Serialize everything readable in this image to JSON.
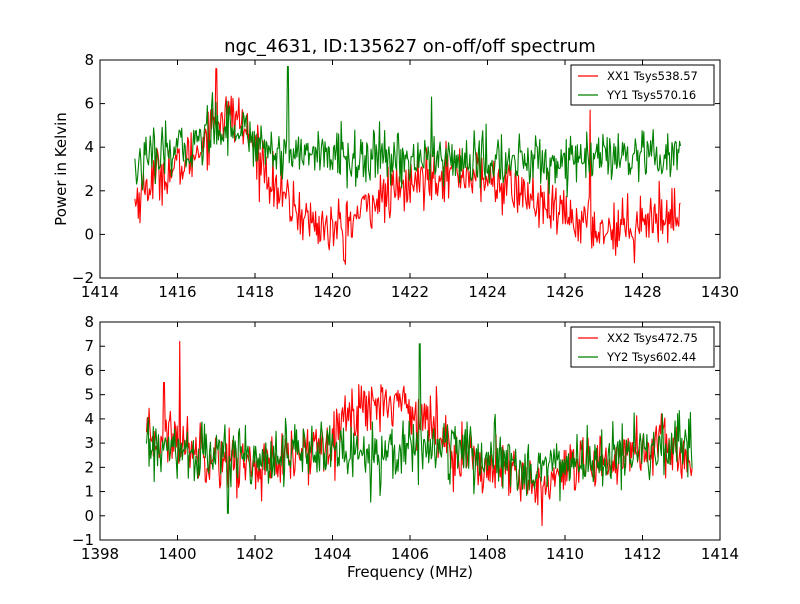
{
  "chart_data": [
    {
      "type": "line",
      "title": "ngc_4631, ID:135627 on-off/off spectrum",
      "xlabel": "",
      "ylabel": "Power in Kelvin",
      "xlim": [
        1414,
        1430
      ],
      "ylim": [
        -2,
        8
      ],
      "xticks": [
        1414,
        1416,
        1418,
        1420,
        1422,
        1424,
        1426,
        1428,
        1430
      ],
      "yticks": [
        -2,
        0,
        2,
        4,
        6,
        8
      ],
      "grid": false,
      "legend_position": "top-right",
      "series": [
        {
          "name": "XX1 Tsys538.57",
          "color": "#ff0000",
          "x_range": [
            1414.9,
            1429.0
          ],
          "points": [
            [
              1414.9,
              1.5
            ],
            [
              1415.2,
              2.2
            ],
            [
              1415.5,
              2.8
            ],
            [
              1416.0,
              3.0
            ],
            [
              1416.5,
              3.8
            ],
            [
              1417.0,
              5.4
            ],
            [
              1417.5,
              5.5
            ],
            [
              1418.0,
              4.0
            ],
            [
              1418.5,
              2.2
            ],
            [
              1419.0,
              1.2
            ],
            [
              1419.5,
              0.5
            ],
            [
              1420.0,
              0.2
            ],
            [
              1420.5,
              0.6
            ],
            [
              1421.0,
              1.5
            ],
            [
              1421.5,
              1.8
            ],
            [
              1422.0,
              2.2
            ],
            [
              1422.5,
              2.8
            ],
            [
              1423.0,
              2.9
            ],
            [
              1423.5,
              2.8
            ],
            [
              1424.0,
              2.5
            ],
            [
              1424.5,
              2.2
            ],
            [
              1425.0,
              1.8
            ],
            [
              1425.5,
              1.1
            ],
            [
              1426.0,
              0.9
            ],
            [
              1426.5,
              0.5
            ],
            [
              1427.0,
              0.2
            ],
            [
              1427.5,
              0.4
            ],
            [
              1428.0,
              0.8
            ],
            [
              1428.5,
              0.8
            ],
            [
              1429.0,
              1.0
            ]
          ],
          "spikes": [
            [
              1417.0,
              7.6
            ],
            [
              1426.65,
              5.7
            ],
            [
              1420.3,
              -1.2
            ],
            [
              1427.8,
              -1.3
            ]
          ]
        },
        {
          "name": "YY1 Tsys570.16",
          "color": "#008000",
          "x_range": [
            1414.9,
            1429.0
          ],
          "points": [
            [
              1414.9,
              3.0
            ],
            [
              1415.5,
              3.6
            ],
            [
              1416.0,
              3.8
            ],
            [
              1416.5,
              4.2
            ],
            [
              1417.0,
              5.0
            ],
            [
              1417.5,
              5.0
            ],
            [
              1418.0,
              4.3
            ],
            [
              1418.5,
              3.8
            ],
            [
              1419.0,
              3.8
            ],
            [
              1420.0,
              3.6
            ],
            [
              1421.0,
              3.4
            ],
            [
              1422.0,
              3.5
            ],
            [
              1423.0,
              3.4
            ],
            [
              1424.0,
              3.3
            ],
            [
              1425.0,
              3.3
            ],
            [
              1426.0,
              3.4
            ],
            [
              1427.0,
              3.5
            ],
            [
              1428.0,
              3.4
            ],
            [
              1429.0,
              3.5
            ]
          ],
          "spikes": [
            [
              1418.85,
              7.7
            ],
            [
              1422.55,
              6.3
            ],
            [
              1416.9,
              6.5
            ]
          ]
        }
      ]
    },
    {
      "type": "line",
      "title": "",
      "xlabel": "Frequency (MHz)",
      "ylabel": "",
      "xlim": [
        1398,
        1414
      ],
      "ylim": [
        -1,
        8
      ],
      "xticks": [
        1398,
        1400,
        1402,
        1404,
        1406,
        1408,
        1410,
        1412,
        1414
      ],
      "yticks": [
        -1,
        0,
        1,
        2,
        3,
        4,
        5,
        6,
        7,
        8
      ],
      "grid": false,
      "legend_position": "top-right",
      "series": [
        {
          "name": "XX2 Tsys472.75",
          "color": "#ff0000",
          "x_range": [
            1399.2,
            1413.3
          ],
          "points": [
            [
              1399.2,
              3.0
            ],
            [
              1399.8,
              3.3
            ],
            [
              1400.5,
              2.8
            ],
            [
              1401.5,
              2.2
            ],
            [
              1402.5,
              2.0
            ],
            [
              1403.5,
              2.8
            ],
            [
              1404.0,
              3.5
            ],
            [
              1404.5,
              4.2
            ],
            [
              1405.0,
              4.6
            ],
            [
              1405.5,
              4.8
            ],
            [
              1406.0,
              4.5
            ],
            [
              1406.5,
              3.8
            ],
            [
              1407.0,
              3.0
            ],
            [
              1407.5,
              2.4
            ],
            [
              1408.0,
              2.0
            ],
            [
              1408.5,
              1.7
            ],
            [
              1409.0,
              1.4
            ],
            [
              1409.5,
              1.3
            ],
            [
              1410.0,
              1.6
            ],
            [
              1410.5,
              2.0
            ],
            [
              1411.0,
              2.2
            ],
            [
              1411.5,
              2.5
            ],
            [
              1412.0,
              2.8
            ],
            [
              1412.5,
              2.9
            ],
            [
              1413.0,
              2.5
            ],
            [
              1413.3,
              2.2
            ]
          ],
          "spikes": [
            [
              1400.05,
              7.2
            ],
            [
              1399.65,
              5.5
            ],
            [
              1409.4,
              -0.4
            ]
          ]
        },
        {
          "name": "YY2 Tsys602.44",
          "color": "#008000",
          "x_range": [
            1399.2,
            1413.3
          ],
          "points": [
            [
              1399.2,
              2.8
            ],
            [
              1400.0,
              2.6
            ],
            [
              1401.0,
              2.5
            ],
            [
              1402.0,
              2.5
            ],
            [
              1403.0,
              2.6
            ],
            [
              1404.0,
              2.7
            ],
            [
              1405.0,
              2.6
            ],
            [
              1406.0,
              2.8
            ],
            [
              1406.5,
              2.9
            ],
            [
              1407.0,
              2.8
            ],
            [
              1408.0,
              2.3
            ],
            [
              1409.0,
              2.0
            ],
            [
              1410.0,
              2.1
            ],
            [
              1411.0,
              2.3
            ],
            [
              1412.0,
              2.6
            ],
            [
              1413.0,
              2.8
            ],
            [
              1413.3,
              2.7
            ]
          ],
          "spikes": [
            [
              1406.25,
              7.1
            ],
            [
              1401.3,
              0.1
            ]
          ]
        }
      ]
    }
  ]
}
